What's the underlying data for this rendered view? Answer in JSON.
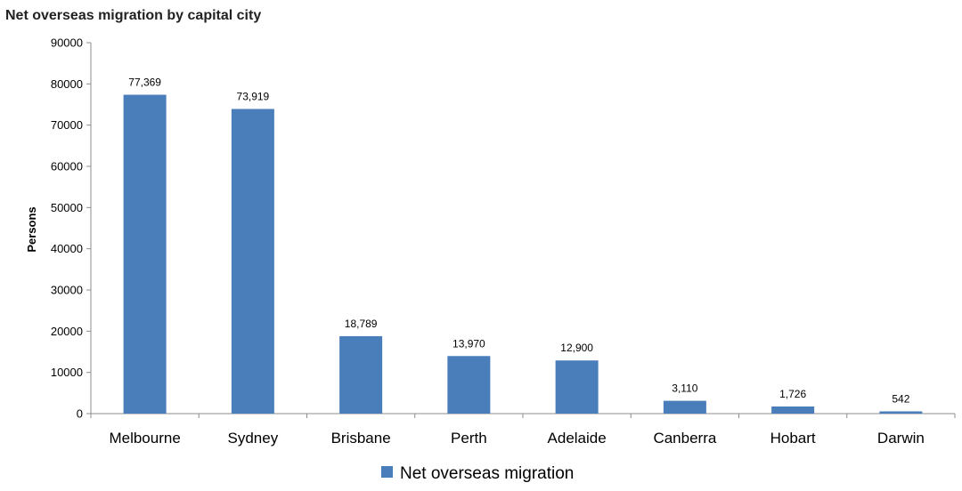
{
  "chart_data": {
    "type": "bar",
    "title": "Net overseas migration by capital city",
    "xlabel": "",
    "ylabel": "Persons",
    "ylim": [
      0,
      90000
    ],
    "yticks": [
      0,
      10000,
      20000,
      30000,
      40000,
      50000,
      60000,
      70000,
      80000,
      90000
    ],
    "categories": [
      "Melbourne",
      "Sydney",
      "Brisbane",
      "Perth",
      "Adelaide",
      "Canberra",
      "Hobart",
      "Darwin"
    ],
    "series": [
      {
        "name": "Net overseas migration",
        "values": [
          77369,
          73919,
          18789,
          13970,
          12900,
          3110,
          1726,
          542
        ],
        "labels": [
          "77,369",
          "73,919",
          "18,789",
          "13,970",
          "12,900",
          "3,110",
          "1,726",
          "542"
        ],
        "color": "#4a7ebb"
      }
    ],
    "legend_position": "bottom",
    "grid": false
  }
}
